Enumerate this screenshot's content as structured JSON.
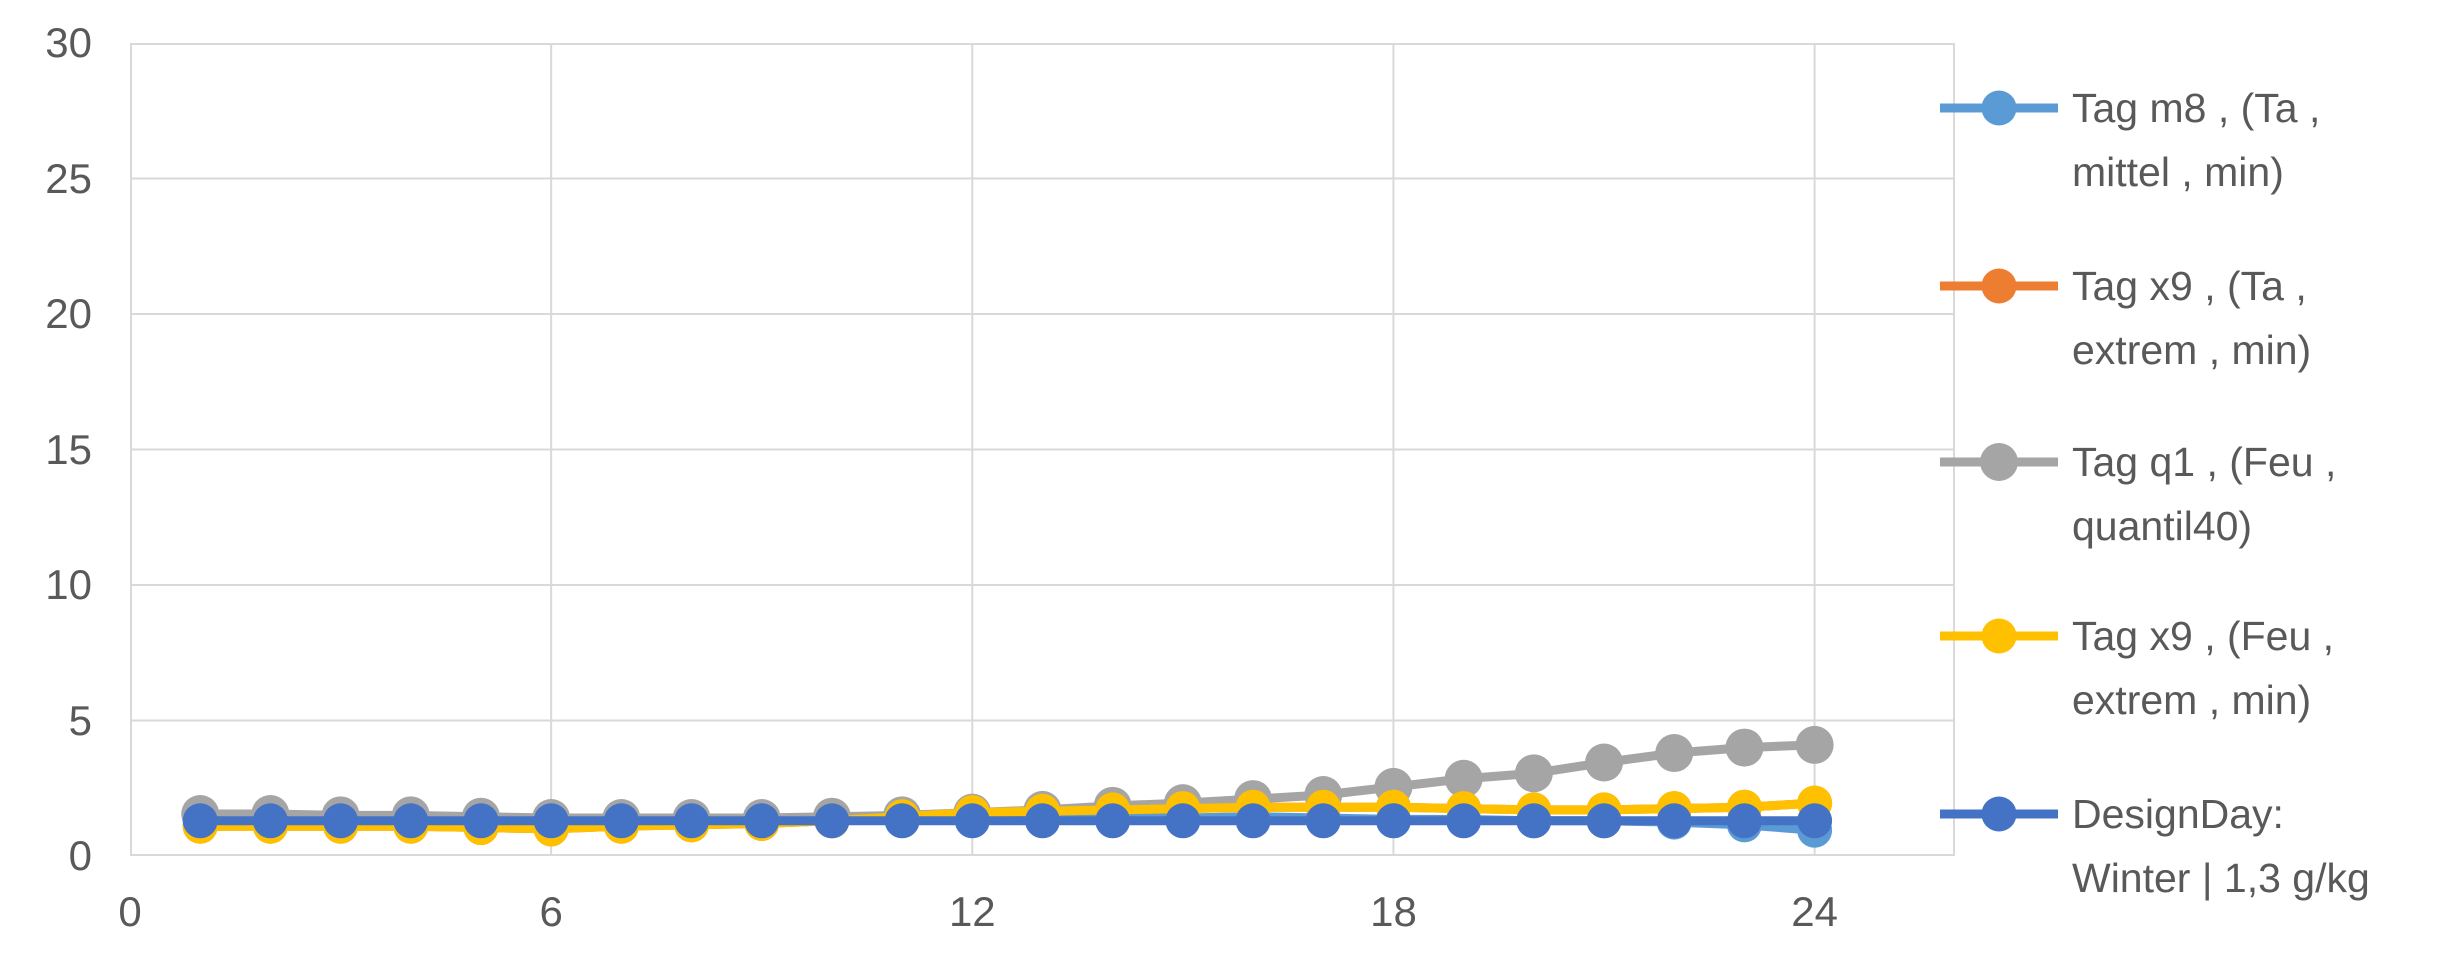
{
  "chart_data": {
    "type": "line",
    "title": "",
    "xlabel": "",
    "ylabel": "",
    "x": [
      1,
      2,
      3,
      4,
      5,
      6,
      7,
      8,
      9,
      10,
      11,
      12,
      13,
      14,
      15,
      16,
      17,
      18,
      19,
      20,
      21,
      22,
      23,
      24
    ],
    "series": [
      {
        "name": "Tag m8 , (Ta , mittel , min)",
        "color": "#5B9BD5",
        "values": [
          1.45,
          1.45,
          1.4,
          1.4,
          1.35,
          1.35,
          1.35,
          1.3,
          1.3,
          1.4,
          1.45,
          1.4,
          1.4,
          1.4,
          1.4,
          1.45,
          1.4,
          1.35,
          1.35,
          1.3,
          1.3,
          1.25,
          1.15,
          0.95
        ]
      },
      {
        "name": "Tag x9 , (Ta , extrem , min)",
        "color": "#ED7D31",
        "values": [
          1.1,
          1.1,
          1.1,
          1.1,
          1.05,
          1.0,
          1.1,
          1.15,
          1.2,
          1.3,
          1.45,
          1.6,
          1.65,
          1.7,
          1.75,
          1.8,
          1.8,
          1.8,
          1.75,
          1.7,
          1.7,
          1.75,
          1.8,
          1.95
        ]
      },
      {
        "name": "Tag q1 , (Feu , quantil40)",
        "color": "#A5A5A5",
        "values": [
          1.55,
          1.55,
          1.5,
          1.5,
          1.45,
          1.4,
          1.4,
          1.4,
          1.4,
          1.45,
          1.5,
          1.6,
          1.7,
          1.85,
          1.95,
          2.1,
          2.25,
          2.55,
          2.85,
          3.05,
          3.45,
          3.8,
          4.0,
          4.1
        ]
      },
      {
        "name": "Tag x9 , (Feu , extrem , min)",
        "color": "#FFC000",
        "values": [
          1.1,
          1.1,
          1.1,
          1.1,
          1.05,
          1.0,
          1.1,
          1.15,
          1.2,
          1.3,
          1.45,
          1.6,
          1.65,
          1.7,
          1.75,
          1.8,
          1.8,
          1.8,
          1.75,
          1.7,
          1.7,
          1.75,
          1.8,
          1.95
        ]
      },
      {
        "name": "DesignDay: Winter | 1,3 g/kg",
        "color": "#4472C4",
        "values": [
          1.3,
          1.3,
          1.3,
          1.3,
          1.3,
          1.3,
          1.3,
          1.3,
          1.3,
          1.3,
          1.3,
          1.3,
          1.3,
          1.3,
          1.3,
          1.3,
          1.3,
          1.3,
          1.3,
          1.3,
          1.3,
          1.3,
          1.3,
          1.3
        ]
      }
    ],
    "xlim": [
      0,
      26
    ],
    "ylim": [
      0,
      30
    ],
    "xticks": [
      0,
      6,
      12,
      18,
      24
    ],
    "yticks": [
      0,
      5,
      10,
      15,
      20,
      25,
      30
    ],
    "grid": true,
    "legend_position": "right",
    "gridline_color": "#D9D9D9",
    "axis_line_color": "#BFBFBF",
    "tick_label_color": "#595959"
  },
  "legend": {
    "items": [
      {
        "line1": "Tag m8 , (Ta ,",
        "line2": "mittel , min)"
      },
      {
        "line1": "Tag x9 , (Ta ,",
        "line2": "extrem , min)"
      },
      {
        "line1": "Tag q1 , (Feu ,",
        "line2": "quantil40)"
      },
      {
        "line1": "Tag x9 , (Feu ,",
        "line2": "extrem , min)"
      },
      {
        "line1": "DesignDay:",
        "line2": "Winter | 1,3 g/kg"
      }
    ]
  }
}
